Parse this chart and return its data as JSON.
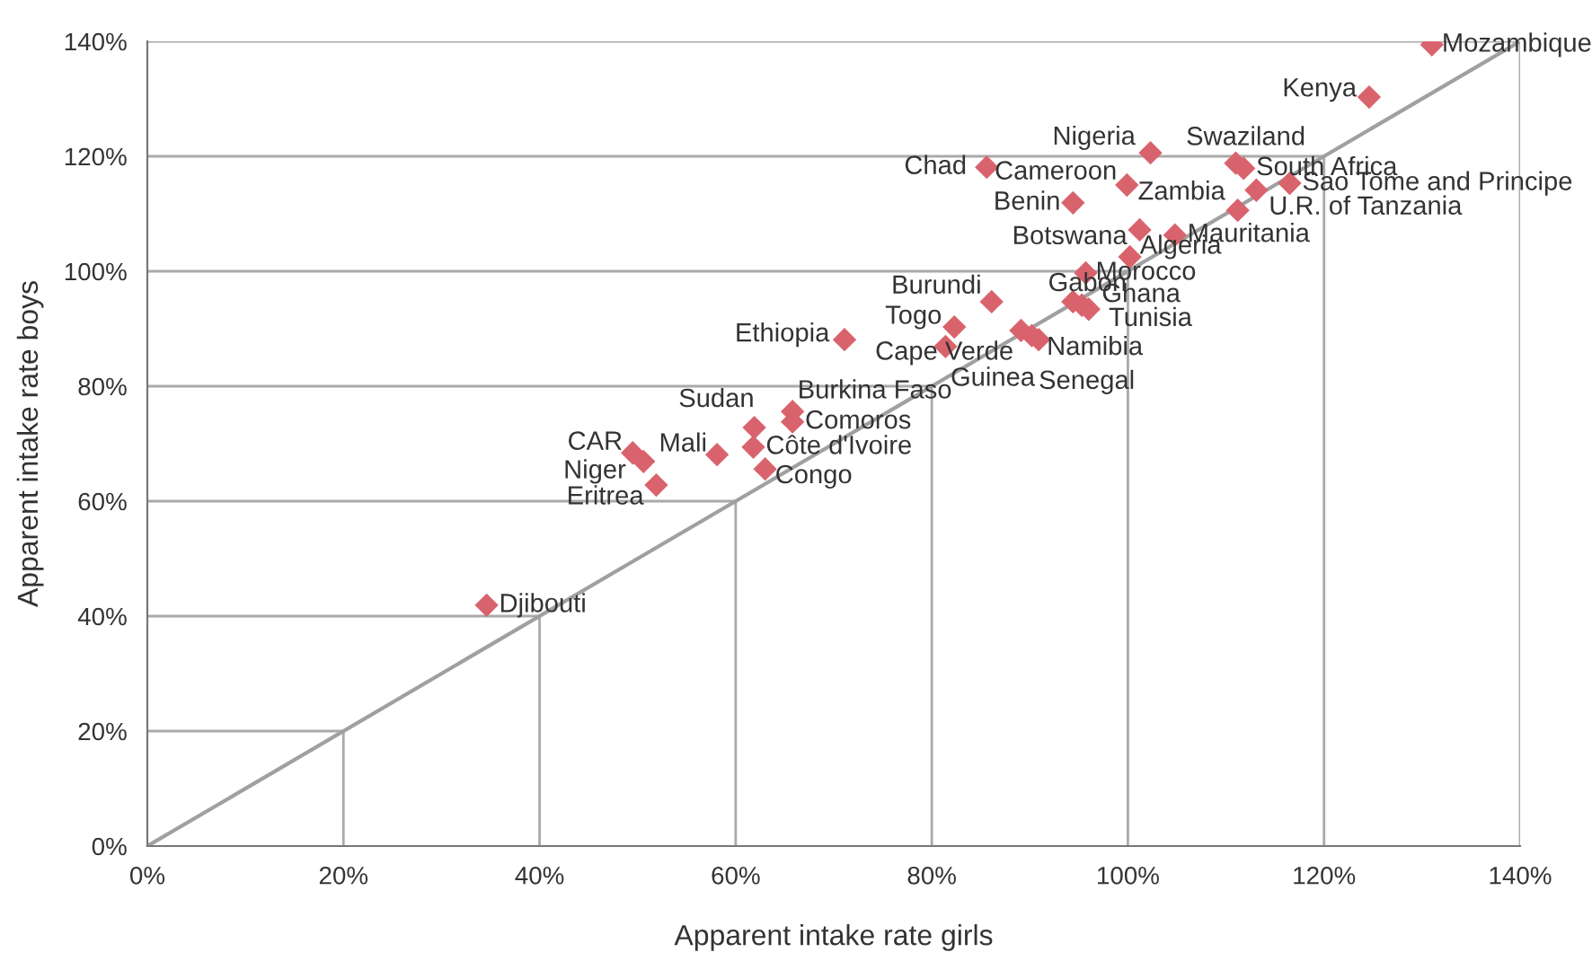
{
  "chart_data": {
    "type": "scatter",
    "xlabel": "Apparent intake rate girls",
    "ylabel": "Apparent intake rate boys",
    "xlim": [
      0,
      140
    ],
    "ylim": [
      0,
      140
    ],
    "xticks": [
      {
        "value": 0,
        "label": "0%"
      },
      {
        "value": 20,
        "label": "20%"
      },
      {
        "value": 40,
        "label": "40%"
      },
      {
        "value": 60,
        "label": "60%"
      },
      {
        "value": 80,
        "label": "80%"
      },
      {
        "value": 100,
        "label": "100%"
      },
      {
        "value": 120,
        "label": "120%"
      },
      {
        "value": 140,
        "label": "140%"
      }
    ],
    "yticks": [
      {
        "value": 0,
        "label": "0%"
      },
      {
        "value": 20,
        "label": "20%"
      },
      {
        "value": 40,
        "label": "40%"
      },
      {
        "value": 60,
        "label": "60%"
      },
      {
        "value": 80,
        "label": "80%"
      },
      {
        "value": 100,
        "label": "100%"
      },
      {
        "value": 120,
        "label": "120%"
      },
      {
        "value": 140,
        "label": "140%"
      }
    ],
    "grid": true,
    "series": [
      {
        "type": "line",
        "marker": "none",
        "color": "#a0a0a0",
        "x": [
          0,
          140
        ],
        "values": [
          0,
          140
        ]
      },
      {
        "type": "scatter",
        "marker": "diamond",
        "color": "#d9636d",
        "x": [
          131.0,
          124.6,
          102.3,
          85.6,
          111.0,
          111.8,
          99.9,
          116.5,
          113.1,
          111.2,
          94.4,
          101.2,
          104.8,
          100.2,
          95.7,
          86.1,
          94.4,
          95.3,
          96.0,
          82.3,
          81.4,
          89.1,
          90.2,
          90.9,
          71.1,
          65.8,
          65.8,
          61.9,
          61.8,
          63.0,
          58.1,
          49.5,
          50.6,
          51.9,
          34.6
        ],
        "values": [
          139.4,
          130.3,
          120.6,
          118.1,
          118.8,
          117.9,
          115.0,
          115.3,
          114.1,
          110.6,
          111.9,
          107.2,
          106.3,
          102.5,
          99.7,
          94.7,
          94.7,
          94.1,
          93.4,
          90.3,
          86.9,
          89.7,
          88.8,
          88.1,
          88.1,
          75.6,
          73.8,
          72.8,
          69.4,
          65.6,
          68.1,
          68.4,
          66.9,
          62.8,
          41.9
        ]
      }
    ],
    "annotations": [
      {
        "text": "Mozambique",
        "x": 131.0,
        "y": 139.4
      },
      {
        "text": "Kenya",
        "x": 124.6,
        "y": 130.3
      },
      {
        "text": "Nigeria",
        "x": 102.3,
        "y": 120.6
      },
      {
        "text": "Chad",
        "x": 85.6,
        "y": 118.1
      },
      {
        "text": "Swaziland",
        "x": 111.0,
        "y": 118.8
      },
      {
        "text": "South Africa",
        "x": 111.8,
        "y": 117.9
      },
      {
        "text": "Cameroon",
        "x": 99.9,
        "y": 115.0
      },
      {
        "text": "Sao Tome and Principe",
        "x": 116.5,
        "y": 115.3
      },
      {
        "text": "U.R. of Tanzania",
        "x": 113.1,
        "y": 114.1
      },
      {
        "text": "Zambia",
        "x": 111.2,
        "y": 110.6
      },
      {
        "text": "Benin",
        "x": 94.4,
        "y": 111.9
      },
      {
        "text": "Botswana",
        "x": 101.2,
        "y": 107.2
      },
      {
        "text": "Mauritania",
        "x": 104.8,
        "y": 106.3
      },
      {
        "text": "Algeria",
        "x": 100.2,
        "y": 102.5
      },
      {
        "text": "Morocco",
        "x": 95.7,
        "y": 99.7
      },
      {
        "text": "Burundi",
        "x": 86.1,
        "y": 94.7
      },
      {
        "text": "Gabon",
        "x": 94.4,
        "y": 94.7
      },
      {
        "text": "Ghana",
        "x": 95.3,
        "y": 94.1
      },
      {
        "text": "Tunisia",
        "x": 96.0,
        "y": 93.4
      },
      {
        "text": "Togo",
        "x": 82.3,
        "y": 90.3
      },
      {
        "text": "Guinea",
        "x": 81.4,
        "y": 86.9
      },
      {
        "text": "Cape Verde",
        "x": 89.1,
        "y": 89.7
      },
      {
        "text": "Namibia",
        "x": 90.2,
        "y": 88.8
      },
      {
        "text": "Senegal",
        "x": 90.9,
        "y": 88.1
      },
      {
        "text": "Ethiopia",
        "x": 71.1,
        "y": 88.1
      },
      {
        "text": "Burkina Faso",
        "x": 65.8,
        "y": 75.6
      },
      {
        "text": "Comoros",
        "x": 65.8,
        "y": 73.8
      },
      {
        "text": "Sudan",
        "x": 61.9,
        "y": 72.8
      },
      {
        "text": "Côte d'Ivoire",
        "x": 61.8,
        "y": 69.4
      },
      {
        "text": "Congo",
        "x": 63.0,
        "y": 65.6
      },
      {
        "text": "Mali",
        "x": 58.1,
        "y": 68.1
      },
      {
        "text": "CAR",
        "x": 49.5,
        "y": 68.4
      },
      {
        "text": "Niger",
        "x": 50.6,
        "y": 66.9
      },
      {
        "text": "Eritrea",
        "x": 51.9,
        "y": 62.8
      },
      {
        "text": "Djibouti",
        "x": 34.6,
        "y": 41.9
      }
    ]
  }
}
